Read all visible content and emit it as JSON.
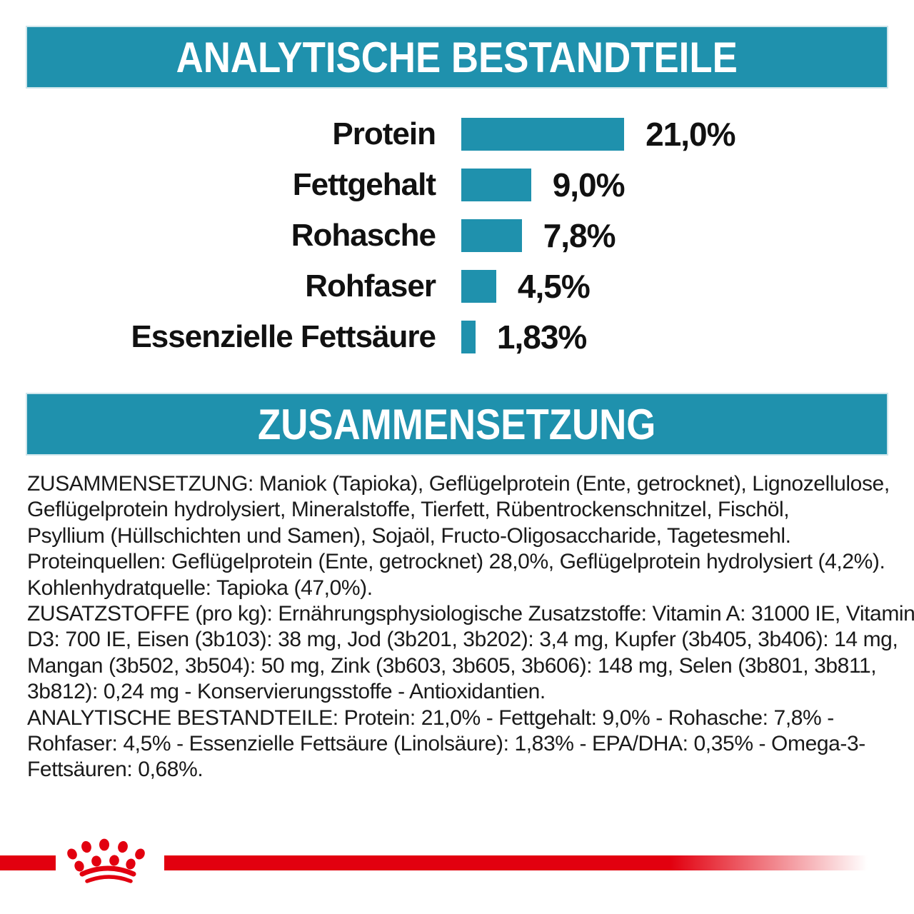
{
  "colors": {
    "teal": "#1f91ad",
    "red": "#e2000f",
    "text": "#1a1a1a",
    "background": "#ffffff"
  },
  "banners": {
    "analytical_title": "ANALYTISCHE BESTANDTEILE",
    "composition_title": "ZUSAMMENSETZUNG"
  },
  "chart_data": {
    "type": "bar",
    "orientation": "horizontal",
    "title": "ANALYTISCHE BESTANDTEILE",
    "categories": [
      "Protein",
      "Fettgehalt",
      "Rohasche",
      "Rohfaser",
      "Essenzielle Fettsäure"
    ],
    "values": [
      21.0,
      9.0,
      7.8,
      4.5,
      1.83
    ],
    "value_labels": [
      "21,0%",
      "9,0%",
      "7,8%",
      "4,5%",
      "1,83%"
    ],
    "unit": "%",
    "xlim": [
      0,
      21
    ],
    "bar_color": "#1f91ad",
    "grid": false,
    "legend": false
  },
  "composition": {
    "lines": [
      "ZUSAMMENSETZUNG: Maniok (Tapioka), Geflügelprotein (Ente, getrocknet), Lignozellulose,",
      "Geflügelprotein hydrolysiert, Mineralstoffe, Tierfett, Rübentrockenschnitzel, Fischöl,",
      "Psyllium (Hüllschichten und Samen), Sojaöl, Fructo-Oligosaccharide, Tagetesmehl.",
      "Proteinquellen: Geflügelprotein (Ente, getrocknet) 28,0%, Geflügelprotein hydrolysiert (4,2%).",
      "Kohlenhydratquelle: Tapioka (47,0%).",
      "ZUSATZSTOFFE (pro kg): Ernährungsphysiologische Zusatzstoffe: Vitamin A: 31000 IE, Vitamin",
      "D3: 700 IE, Eisen (3b103): 38 mg, Jod (3b201, 3b202): 3,4 mg, Kupfer (3b405, 3b406): 14 mg,",
      "Mangan (3b502, 3b504): 50 mg, Zink (3b603, 3b605, 3b606): 148 mg, Selen (3b801, 3b811,",
      "3b812): 0,24 mg - Konservierungsstoffe - Antioxidantien.",
      "ANALYTISCHE BESTANDTEILE: Protein: 21,0% - Fettgehalt: 9,0% - Rohasche: 7,8% -",
      "Rohfaser: 4,5% - Essenzielle Fettsäure (Linolsäure): 1,83% - EPA/DHA: 0,35% - Omega-3-",
      "Fettsäuren: 0,68%."
    ]
  },
  "footer": {
    "logo": "royal-canin-crown"
  }
}
